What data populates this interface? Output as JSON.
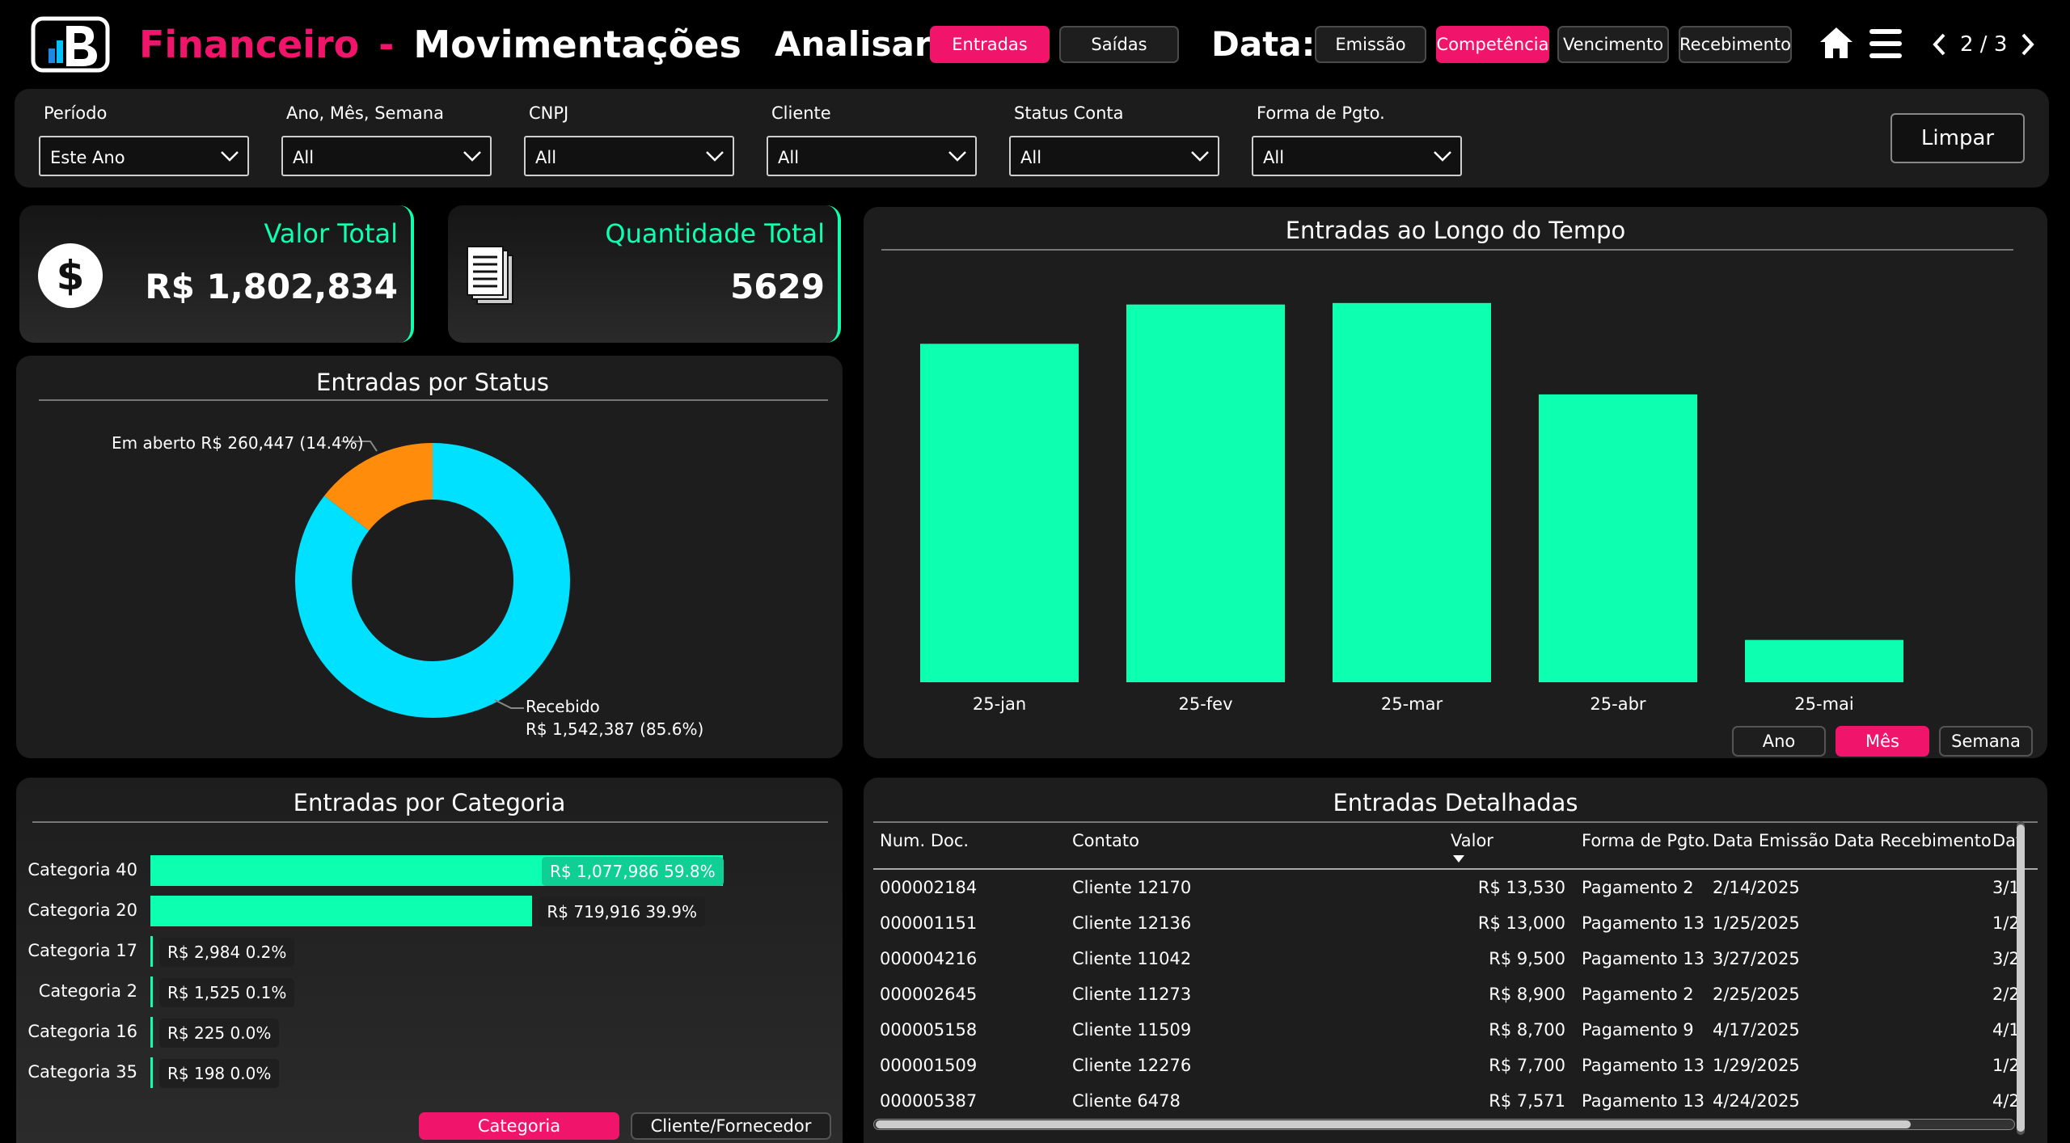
{
  "header": {
    "title_part1": "Financeiro",
    "title_dash": "-",
    "title_part2": "Movimentações",
    "analisar_label": "Analisar:",
    "analisar_options": [
      "Entradas",
      "Saídas"
    ],
    "data_label": "Data:",
    "data_options": [
      "Emissão",
      "Competência",
      "Vencimento",
      "Recebimento"
    ],
    "page_indicator": "2 / 3"
  },
  "filters": [
    {
      "label": "Período",
      "value": "Este Ano"
    },
    {
      "label": "Ano, Mês, Semana",
      "value": "All"
    },
    {
      "label": "CNPJ",
      "value": "All"
    },
    {
      "label": "Cliente",
      "value": "All"
    },
    {
      "label": "Status Conta",
      "value": "All"
    },
    {
      "label": "Forma de Pgto.",
      "value": "All"
    }
  ],
  "clear_button": "Limpar",
  "kpis": {
    "valor_total_label": "Valor Total",
    "valor_total": "R$ 1,802,834",
    "quantidade_total_label": "Quantidade Total",
    "quantidade_total": "5629"
  },
  "status_chart": {
    "title": "Entradas por Status",
    "slices": [
      {
        "name": "Em aberto",
        "label": "Em aberto R$ 260,447 (14.4%)",
        "value": 260447,
        "pct": 14.4,
        "color": "#ff8c0a"
      },
      {
        "name": "Recebido",
        "label_line1": "Recebido",
        "label_line2": "R$ 1,542,387 (85.6%)",
        "value": 1542387,
        "pct": 85.6,
        "color": "#00e1ff"
      }
    ]
  },
  "chart_data": {
    "type": "bar",
    "title": "Entradas ao Longo do Tempo",
    "categories": [
      "25-jan",
      "25-fev",
      "25-mar",
      "25-abr",
      "25-mai"
    ],
    "values": [
      448000,
      500000,
      502000,
      381000,
      56000
    ],
    "ylim": [
      0,
      520000
    ],
    "color": "#0dffb0"
  },
  "time_toggle": {
    "options": [
      "Ano",
      "Mês",
      "Semana"
    ],
    "active": "Mês"
  },
  "category_chart": {
    "title": "Entradas por Categoria",
    "items": [
      {
        "name": "Categoria 40",
        "label": "R$ 1,077,986  59.8%",
        "pct": 59.8
      },
      {
        "name": "Categoria 20",
        "label": "R$ 719,916  39.9%",
        "pct": 39.9
      },
      {
        "name": "Categoria 17",
        "label": "R$ 2,984  0.2%",
        "pct": 0.2
      },
      {
        "name": "Categoria 2",
        "label": "R$ 1,525  0.1%",
        "pct": 0.1
      },
      {
        "name": "Categoria 16",
        "label": "R$ 225  0.0%",
        "pct": 0.0
      },
      {
        "name": "Categoria 35",
        "label": "R$ 198  0.0%",
        "pct": 0.0
      }
    ],
    "toggle": [
      "Categoria",
      "Cliente/Fornecedor"
    ]
  },
  "table": {
    "title": "Entradas Detalhadas",
    "columns": [
      "Num. Doc.",
      "Contato",
      "Valor",
      "Forma de Pgto.",
      "Data Emissão",
      "Data Recebimento",
      "Dat"
    ],
    "rows": [
      [
        "000002184",
        "Cliente 12170",
        "R$ 13,530",
        "Pagamento 2",
        "2/14/2025",
        "",
        "3/1"
      ],
      [
        "000001151",
        "Cliente 12136",
        "R$ 13,000",
        "Pagamento 13",
        "1/25/2025",
        "",
        "1/2"
      ],
      [
        "000004216",
        "Cliente 11042",
        "R$ 9,500",
        "Pagamento 13",
        "3/27/2025",
        "",
        "3/2"
      ],
      [
        "000002645",
        "Cliente 11273",
        "R$ 8,900",
        "Pagamento 2",
        "2/25/2025",
        "",
        "2/2"
      ],
      [
        "000005158",
        "Cliente 11509",
        "R$ 8,700",
        "Pagamento 9",
        "4/17/2025",
        "",
        "4/1"
      ],
      [
        "000001509",
        "Cliente 12276",
        "R$ 7,700",
        "Pagamento 13",
        "1/29/2025",
        "",
        "1/2"
      ],
      [
        "000005387",
        "Cliente 6478",
        "R$ 7,571",
        "Pagamento 13",
        "4/24/2025",
        "",
        "4/2"
      ]
    ]
  }
}
